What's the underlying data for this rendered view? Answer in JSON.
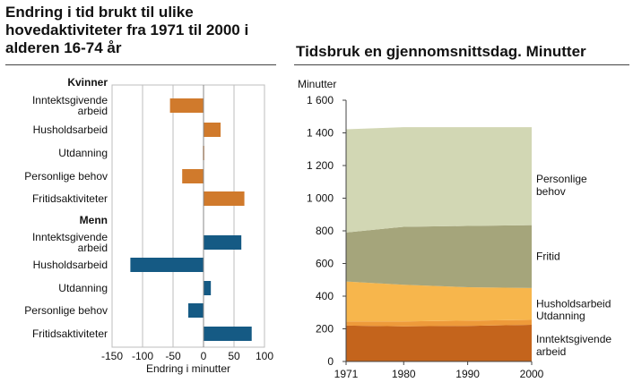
{
  "left_title": "Endring i tid brukt til ulike hovedaktiviteter fra 1971 til 2000 i alderen 16-74 år",
  "right_title": "Tidsbruk en gjennomsnittsdag. Minutter",
  "colors": {
    "women": "#D07A2C",
    "men": "#155A84",
    "grid": "#BDBDBD"
  },
  "chart_data": [
    {
      "type": "bar",
      "orientation": "horizontal",
      "xlabel": "Endring i minutter",
      "xlim": [
        -150,
        100
      ],
      "xticks": [
        "-150",
        "-100",
        "-50",
        "0",
        "50",
        "100"
      ],
      "groups": [
        {
          "name": "Kvinner",
          "color": "#D07A2C",
          "items": [
            {
              "label": [
                "Inntektsgivende",
                "arbeid"
              ],
              "value": -55
            },
            {
              "label": [
                "Husholdsarbeid"
              ],
              "value": 28
            },
            {
              "label": [
                "Utdanning"
              ],
              "value": -1
            },
            {
              "label": [
                "Personlige behov"
              ],
              "value": -35
            },
            {
              "label": [
                "Fritidsaktiviteter"
              ],
              "value": 67
            }
          ]
        },
        {
          "name": "Menn",
          "color": "#155A84",
          "items": [
            {
              "label": [
                "Inntektsgivende",
                "arbeid"
              ],
              "value": 62
            },
            {
              "label": [
                "Husholdsarbeid"
              ],
              "value": -120
            },
            {
              "label": [
                "Utdanning"
              ],
              "value": 12
            },
            {
              "label": [
                "Personlige behov"
              ],
              "value": -25
            },
            {
              "label": [
                "Fritidsaktiviteter"
              ],
              "value": 79
            }
          ]
        }
      ]
    },
    {
      "type": "area",
      "stacked": true,
      "ylabel": "Minutter",
      "ylim": [
        0,
        1600
      ],
      "yticks": [
        "0",
        "200",
        "400",
        "600",
        "800",
        "1 000",
        "1 200",
        "1 400",
        "1 600"
      ],
      "xlim": [
        1971,
        2000
      ],
      "xticks": [
        "1971",
        "1980",
        "1990",
        "2000"
      ],
      "x": [
        1971,
        1980,
        1990,
        2000
      ],
      "series": [
        {
          "name": [
            "Inntektsgivende",
            "arbeid"
          ],
          "color": "#C4641C",
          "values": [
            220,
            215,
            218,
            225
          ]
        },
        {
          "name": [
            "Utdanning"
          ],
          "color": "#EE9A3A",
          "values": [
            25,
            30,
            32,
            30
          ]
        },
        {
          "name": [
            "Husholdsarbeid"
          ],
          "color": "#F7B64C",
          "values": [
            245,
            225,
            205,
            195
          ]
        },
        {
          "name": [
            "Fritid"
          ],
          "color": "#A5A57B",
          "values": [
            300,
            355,
            375,
            385
          ]
        },
        {
          "name": [
            "Personlige",
            "behov"
          ],
          "color": "#D2D7B4",
          "values": [
            632,
            610,
            605,
            600
          ]
        }
      ]
    }
  ]
}
